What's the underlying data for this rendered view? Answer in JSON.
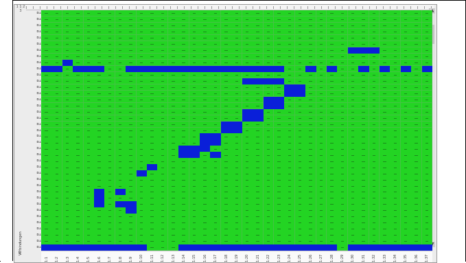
{
  "app": {
    "corner_label": "1 1 2 3",
    "side_label": "Verbindungen",
    "bottom_corner": "L"
  },
  "grid": {
    "rows": 39,
    "cols": 37,
    "color_on": "#0a1fd9",
    "color_off": "#23d423",
    "row_labels": [
      "B1",
      "B1",
      "B1",
      "B1",
      "B1",
      "B1",
      "B1",
      "B1",
      "B1",
      "B1",
      "B1",
      "B1",
      "B1",
      "B1",
      "B1",
      "B1",
      "B1",
      "B1",
      "B1",
      "B1",
      "B1",
      "B1",
      "B1",
      "B1",
      "B1",
      "B1",
      "B1",
      "B1",
      "B1",
      "B1",
      "B1",
      "B1",
      "B1",
      "B1",
      "B1",
      "B1",
      "B1",
      "B1",
      "B1"
    ],
    "col_labels": [
      "1:1",
      "1:2",
      "1:3",
      "1:4",
      "1:5",
      "1:6",
      "1:7",
      "1:8",
      "1:9",
      "1:10",
      "1:11",
      "1:12",
      "1:13",
      "1:14",
      "1:15",
      "1:16",
      "1:17",
      "1:18",
      "1:19",
      "1:20",
      "1:21",
      "1:22",
      "1:23",
      "1:24",
      "1:25",
      "1:26",
      "1:27",
      "1:28",
      "1:29",
      "1:30",
      "1:31",
      "1:32",
      "1:33",
      "1:34",
      "1:35",
      "1:36",
      "1:37"
    ],
    "on_cells": [
      [
        6,
        29
      ],
      [
        6,
        30
      ],
      [
        6,
        31
      ],
      [
        8,
        2
      ],
      [
        9,
        0
      ],
      [
        9,
        1
      ],
      [
        9,
        3
      ],
      [
        9,
        4
      ],
      [
        9,
        5
      ],
      [
        9,
        8
      ],
      [
        9,
        9
      ],
      [
        9,
        10
      ],
      [
        9,
        11
      ],
      [
        9,
        12
      ],
      [
        9,
        13
      ],
      [
        9,
        14
      ],
      [
        9,
        15
      ],
      [
        9,
        16
      ],
      [
        9,
        17
      ],
      [
        9,
        18
      ],
      [
        9,
        19
      ],
      [
        9,
        20
      ],
      [
        9,
        21
      ],
      [
        9,
        22
      ],
      [
        9,
        25
      ],
      [
        9,
        27
      ],
      [
        9,
        30
      ],
      [
        9,
        32
      ],
      [
        9,
        34
      ],
      [
        9,
        36
      ],
      [
        11,
        19
      ],
      [
        11,
        20
      ],
      [
        11,
        21
      ],
      [
        11,
        22
      ],
      [
        12,
        23
      ],
      [
        12,
        24
      ],
      [
        13,
        23
      ],
      [
        13,
        24
      ],
      [
        14,
        21
      ],
      [
        14,
        22
      ],
      [
        15,
        21
      ],
      [
        15,
        22
      ],
      [
        16,
        19
      ],
      [
        16,
        20
      ],
      [
        17,
        19
      ],
      [
        17,
        20
      ],
      [
        18,
        17
      ],
      [
        18,
        18
      ],
      [
        19,
        17
      ],
      [
        19,
        18
      ],
      [
        20,
        15
      ],
      [
        20,
        16
      ],
      [
        21,
        15
      ],
      [
        21,
        16
      ],
      [
        22,
        13
      ],
      [
        22,
        14
      ],
      [
        22,
        15
      ],
      [
        23,
        13
      ],
      [
        23,
        14
      ],
      [
        23,
        16
      ],
      [
        25,
        10
      ],
      [
        26,
        9
      ],
      [
        29,
        5
      ],
      [
        29,
        7
      ],
      [
        30,
        5
      ],
      [
        31,
        5
      ],
      [
        31,
        7
      ],
      [
        31,
        8
      ],
      [
        32,
        8
      ],
      [
        38,
        0
      ],
      [
        38,
        1
      ],
      [
        38,
        2
      ],
      [
        38,
        3
      ],
      [
        38,
        4
      ],
      [
        38,
        5
      ],
      [
        38,
        6
      ],
      [
        38,
        7
      ],
      [
        38,
        8
      ],
      [
        38,
        9
      ],
      [
        38,
        13
      ],
      [
        38,
        14
      ],
      [
        38,
        15
      ],
      [
        38,
        16
      ],
      [
        38,
        17
      ],
      [
        38,
        18
      ],
      [
        38,
        19
      ],
      [
        38,
        20
      ],
      [
        38,
        21
      ],
      [
        38,
        22
      ],
      [
        38,
        23
      ],
      [
        38,
        24
      ],
      [
        38,
        25
      ],
      [
        38,
        26
      ],
      [
        38,
        27
      ],
      [
        38,
        29
      ],
      [
        38,
        30
      ],
      [
        38,
        31
      ],
      [
        38,
        32
      ],
      [
        38,
        33
      ],
      [
        38,
        34
      ],
      [
        38,
        35
      ],
      [
        38,
        36
      ]
    ]
  }
}
